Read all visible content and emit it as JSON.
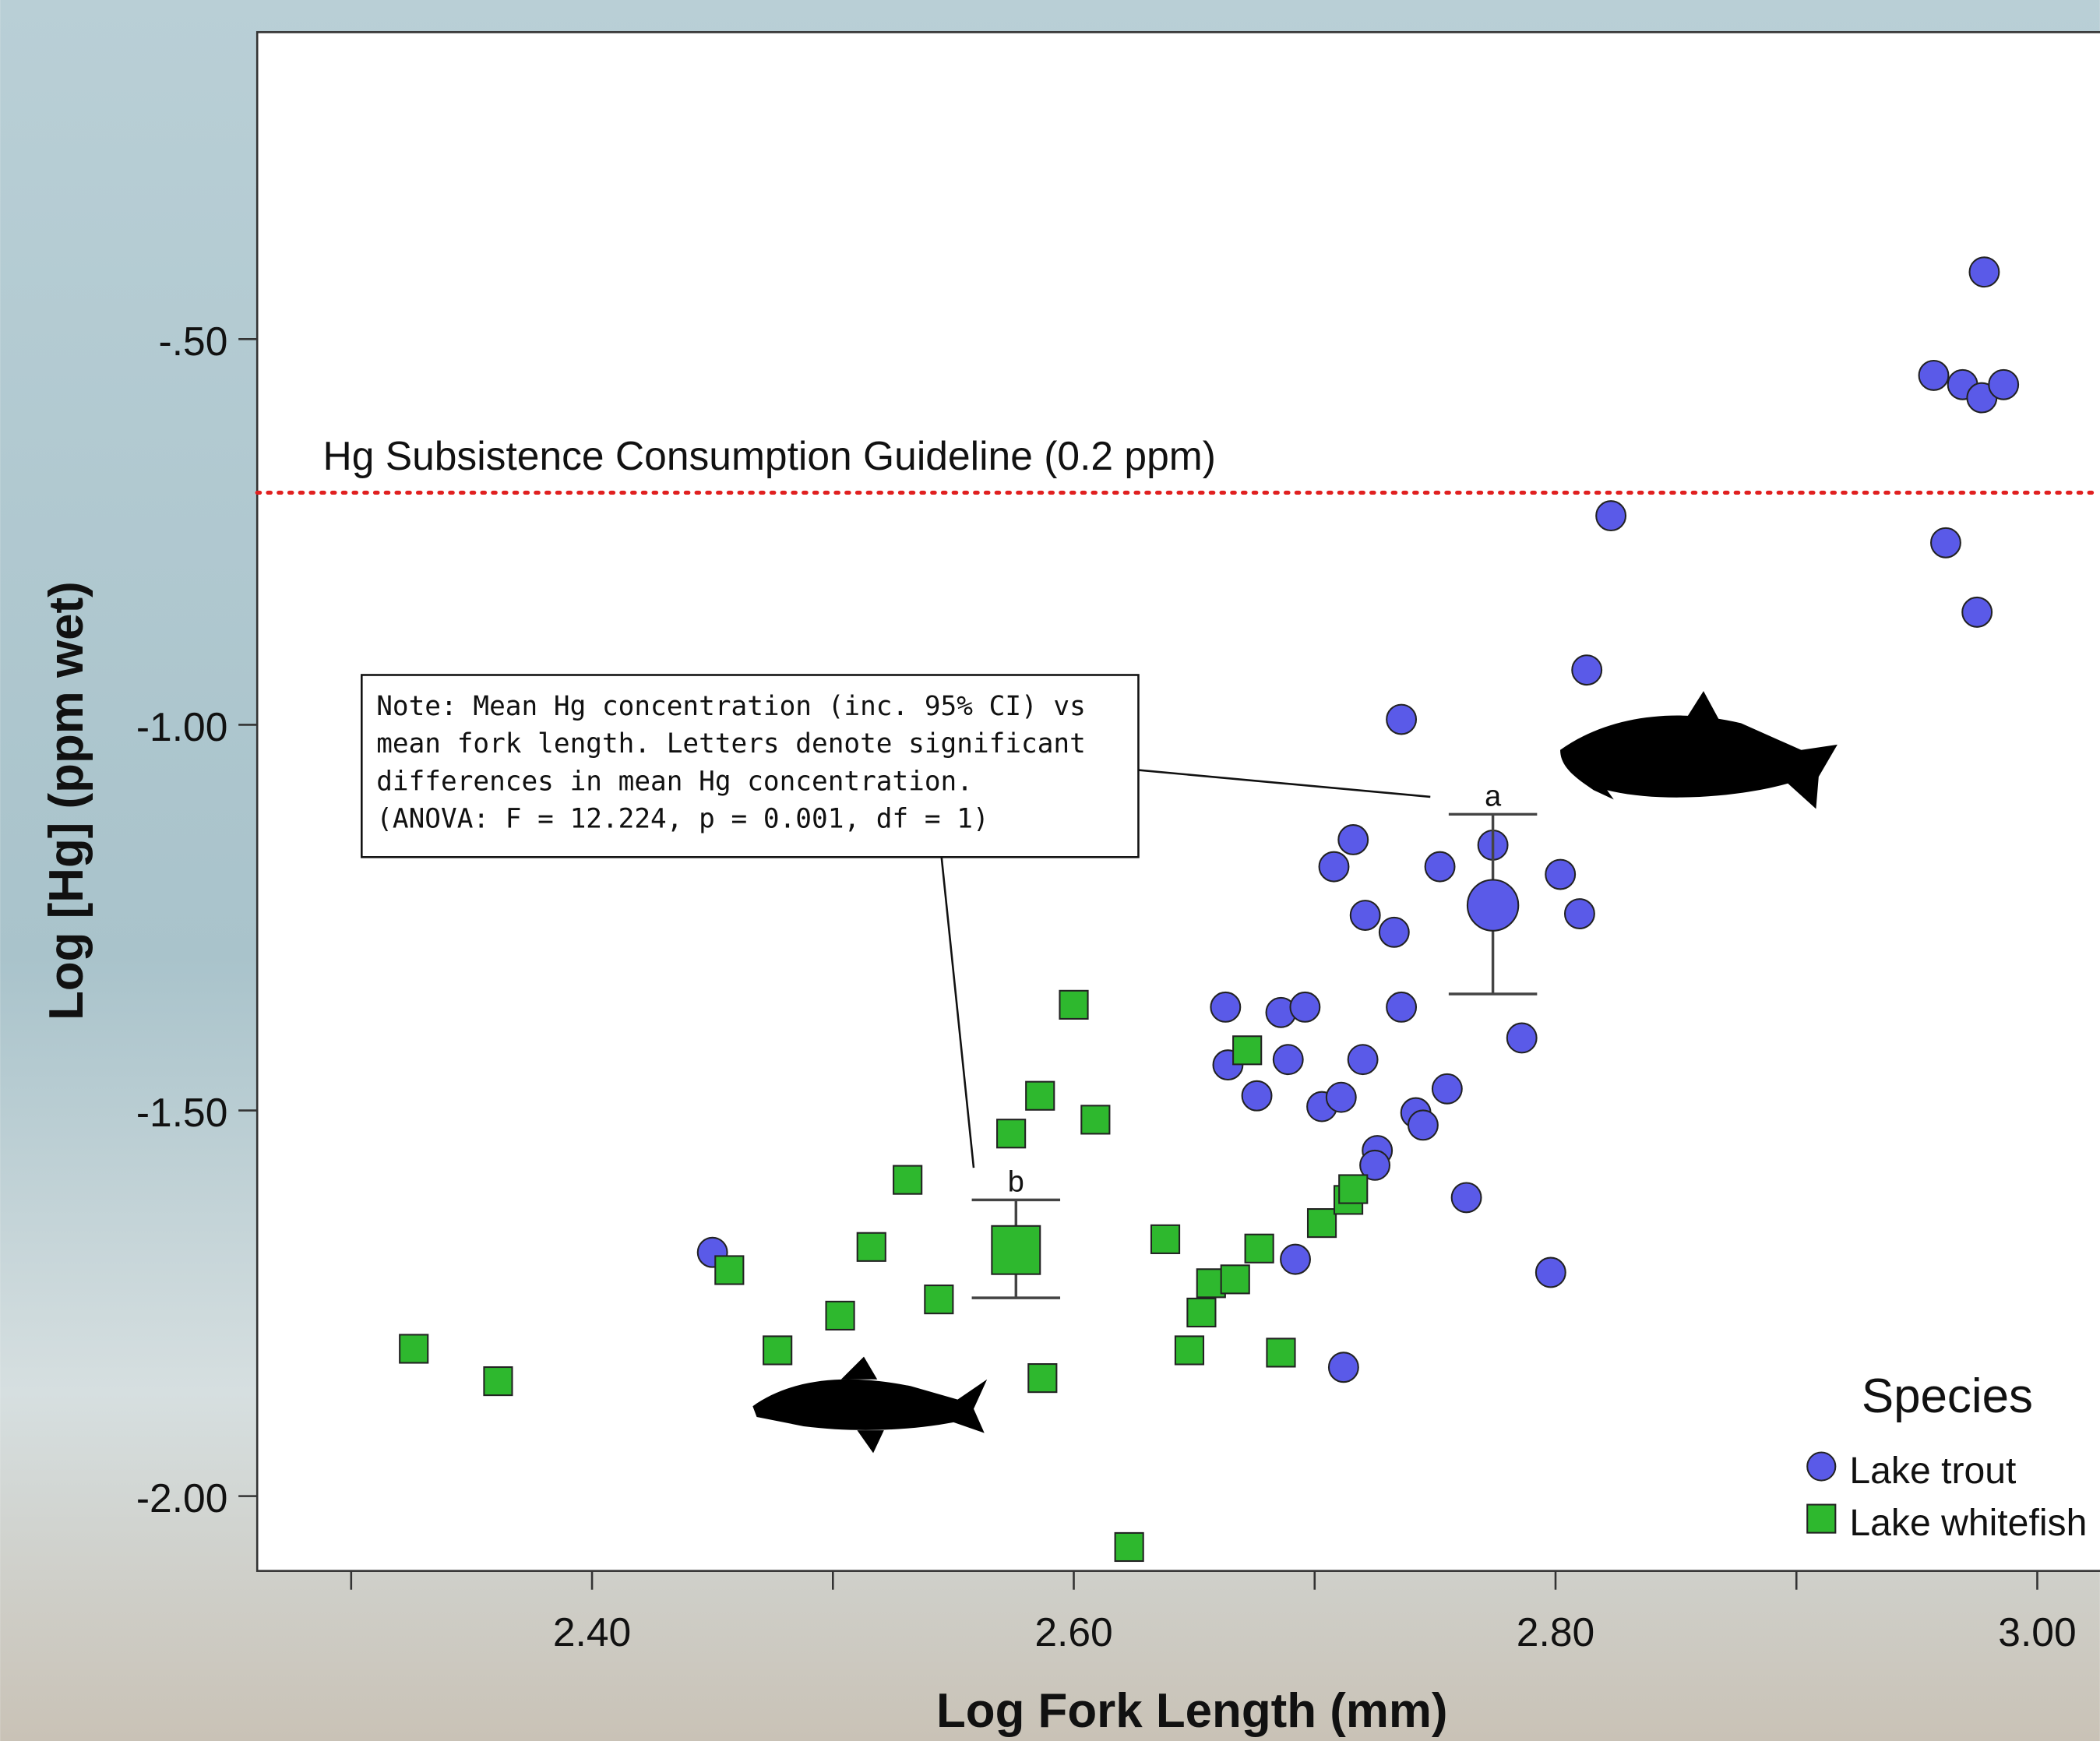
{
  "chart_data": {
    "type": "scatter",
    "x_label": "Log Fork Length (mm)",
    "y_label": "Log [Hg] (ppm wet)",
    "xlim": [
      2.261,
      3.026
    ],
    "ylim": [
      -2.097,
      -0.102
    ],
    "xticks": [
      {
        "value": 2.4,
        "label": "2.40"
      },
      {
        "value": 2.6,
        "label": "2.60"
      },
      {
        "value": 2.8,
        "label": "2.80"
      },
      {
        "value": 3.0,
        "label": "3.00"
      }
    ],
    "xminorticks": [
      2.3,
      2.5,
      2.7,
      2.9
    ],
    "yticks": [
      {
        "value": -0.5,
        "label": "-.50"
      },
      {
        "value": -1.0,
        "label": "-1.00"
      },
      {
        "value": -1.5,
        "label": "-1.50"
      },
      {
        "value": -2.0,
        "label": "-2.00"
      }
    ],
    "reference_line": {
      "value": -0.699,
      "label": "Hg Subsistence Consumption Guideline (0.2 ppm)",
      "color": "#e02020"
    },
    "legend_title": "Species",
    "legend_position": "lower right",
    "series": [
      {
        "name": "Lake trout",
        "color": "#5a5ae8",
        "marker": "circle",
        "x": [
          2.978,
          2.957,
          2.969,
          2.977,
          2.986,
          2.823,
          2.962,
          2.975,
          2.813,
          2.736,
          2.716,
          2.708,
          2.752,
          2.774,
          2.802,
          2.81,
          2.721,
          2.733,
          2.663,
          2.686,
          2.696,
          2.736,
          2.786,
          2.664,
          2.689,
          2.72,
          2.676,
          2.703,
          2.711,
          2.755,
          2.742,
          2.745,
          2.726,
          2.725,
          2.763,
          2.45,
          2.692,
          2.798,
          2.712
        ],
        "values": [
          -0.413,
          -0.547,
          -0.559,
          -0.576,
          -0.559,
          -0.729,
          -0.764,
          -0.854,
          -0.929,
          -0.993,
          -1.149,
          -1.184,
          -1.184,
          -1.156,
          -1.194,
          -1.245,
          -1.247,
          -1.269,
          -1.366,
          -1.373,
          -1.366,
          -1.366,
          -1.406,
          -1.441,
          -1.434,
          -1.434,
          -1.481,
          -1.495,
          -1.483,
          -1.472,
          -1.503,
          -1.519,
          -1.552,
          -1.571,
          -1.613,
          -1.684,
          -1.693,
          -1.71,
          -1.833
        ],
        "mean": {
          "x": 2.774,
          "value": -1.234,
          "ci_low": -1.349,
          "ci_high": -1.116,
          "label": "a"
        }
      },
      {
        "name": "Lake whitefish",
        "color": "#2eb82e",
        "marker": "square",
        "x": [
          2.326,
          2.361,
          2.457,
          2.477,
          2.503,
          2.516,
          2.531,
          2.544,
          2.574,
          2.586,
          2.587,
          2.6,
          2.609,
          2.623,
          2.638,
          2.648,
          2.653,
          2.657,
          2.667,
          2.672,
          2.677,
          2.686,
          2.703,
          2.714,
          2.716
        ],
        "values": [
          -1.809,
          -1.851,
          -1.707,
          -1.811,
          -1.766,
          -1.677,
          -1.59,
          -1.745,
          -1.53,
          -1.481,
          -1.847,
          -1.363,
          -1.512,
          -2.066,
          -1.667,
          -1.811,
          -1.762,
          -1.724,
          -1.719,
          -1.422,
          -1.679,
          -1.814,
          -1.646,
          -1.616,
          -1.602
        ],
        "mean": {
          "x": 2.576,
          "value": -1.681,
          "ci_low": -1.743,
          "ci_high": -1.616,
          "label": "b"
        }
      }
    ],
    "note": [
      "Note: Mean Hg concentration (inc. 95% CI) vs",
      "mean fork length. Letters denote significant",
      "differences in mean Hg concentration.",
      "(ANOVA: F = 12.224, p = 0.001, df = 1)"
    ]
  }
}
